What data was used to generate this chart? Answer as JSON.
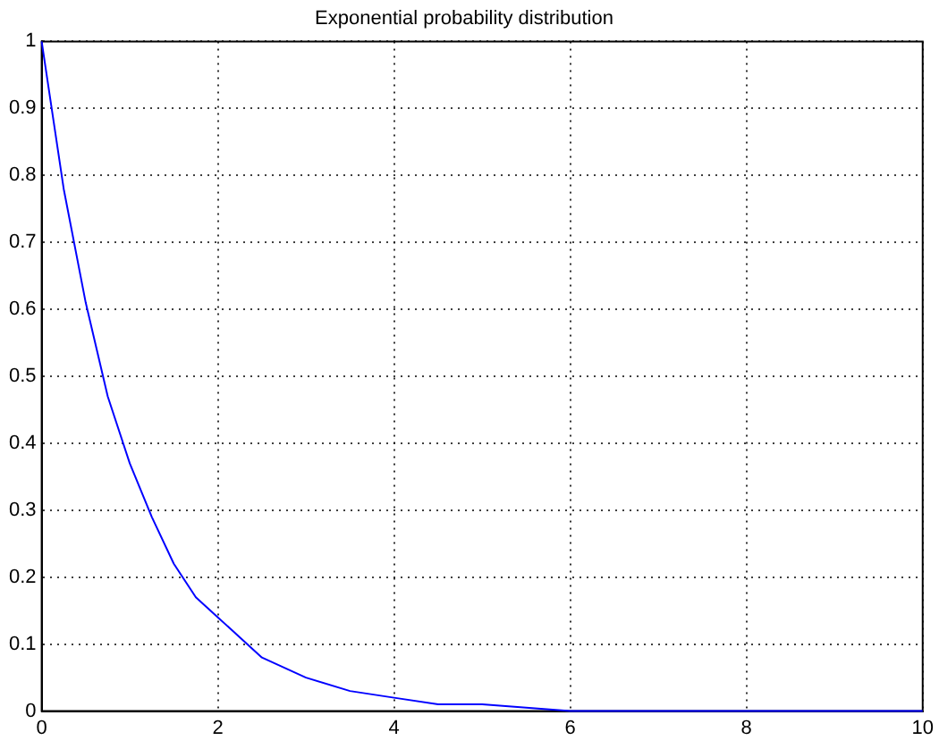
{
  "chart_data": {
    "type": "line",
    "title": "Exponential probability distribution",
    "x": [
      0,
      0.25,
      0.5,
      0.75,
      1,
      1.25,
      1.5,
      1.75,
      2,
      2.5,
      3,
      3.5,
      4,
      4.5,
      5,
      6,
      7,
      8,
      9,
      10
    ],
    "series": [
      {
        "color": "#0000ff",
        "values": [
          1,
          0.78,
          0.61,
          0.47,
          0.37,
          0.29,
          0.22,
          0.17,
          0.14,
          0.08,
          0.05,
          0.03,
          0.02,
          0.01,
          0.01,
          0,
          0,
          0,
          0,
          0
        ]
      }
    ],
    "xlim": [
      0,
      10
    ],
    "xticks": [
      0,
      2,
      4,
      6,
      8,
      10
    ],
    "ylim": [
      0,
      1
    ],
    "yticks": [
      0,
      0.1,
      0.2,
      0.3,
      0.4,
      0.5,
      0.6,
      0.7,
      0.8,
      0.9,
      1
    ],
    "grid": true,
    "legend": false,
    "marker": "none",
    "line_style": "solid"
  }
}
